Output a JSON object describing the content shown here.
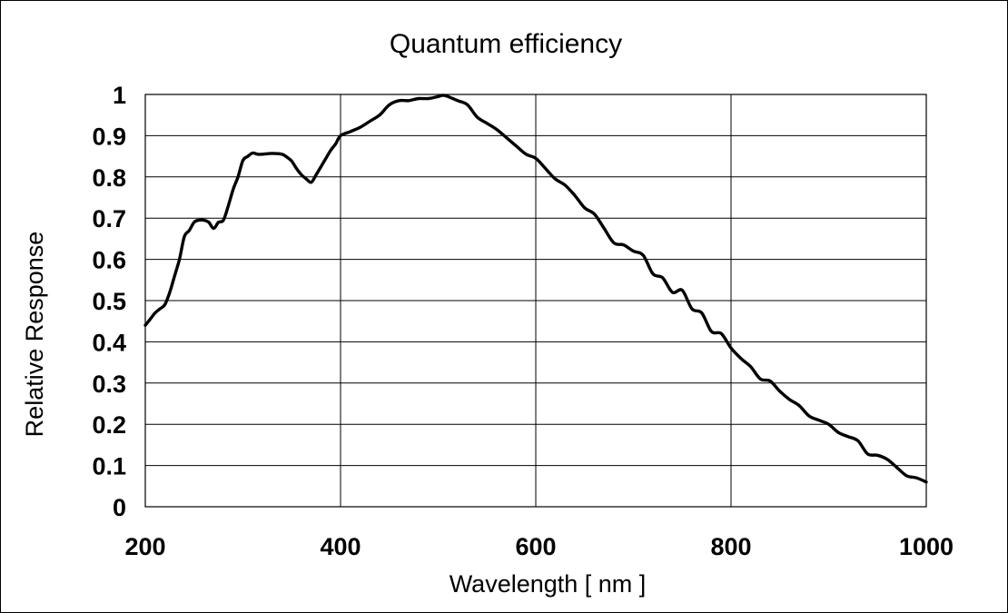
{
  "chart_data": {
    "type": "line",
    "title": "Quantum efficiency",
    "xlabel": "Wavelength [ nm ]",
    "ylabel": "Relative Response",
    "xlim": [
      200,
      1000
    ],
    "ylim": [
      0,
      1
    ],
    "x_ticks": [
      "200",
      "400",
      "600",
      "800",
      "1000"
    ],
    "y_ticks": [
      "0",
      "0.1",
      "0.2",
      "0.3",
      "0.4",
      "0.5",
      "0.6",
      "0.7",
      "0.8",
      "0.9",
      "1"
    ],
    "grid": true,
    "series": [
      {
        "color": "#000000",
        "x": [
          200,
          205,
          210,
          215,
          220,
          225,
          230,
          235,
          240,
          245,
          250,
          255,
          260,
          265,
          270,
          275,
          280,
          285,
          290,
          295,
          300,
          305,
          310,
          315,
          320,
          330,
          340,
          345,
          350,
          355,
          360,
          365,
          370,
          375,
          380,
          385,
          390,
          395,
          400,
          410,
          420,
          430,
          440,
          450,
          460,
          470,
          480,
          490,
          500,
          505,
          510,
          520,
          530,
          540,
          550,
          560,
          570,
          580,
          590,
          600,
          610,
          620,
          630,
          640,
          650,
          660,
          670,
          680,
          690,
          700,
          710,
          720,
          730,
          740,
          750,
          760,
          770,
          780,
          790,
          800,
          810,
          820,
          830,
          840,
          850,
          860,
          870,
          880,
          890,
          900,
          910,
          920,
          930,
          940,
          950,
          960,
          970,
          980,
          990,
          1000
        ],
        "y": [
          0.44,
          0.455,
          0.47,
          0.48,
          0.49,
          0.52,
          0.56,
          0.6,
          0.655,
          0.67,
          0.69,
          0.695,
          0.695,
          0.69,
          0.675,
          0.69,
          0.695,
          0.73,
          0.77,
          0.8,
          0.84,
          0.85,
          0.858,
          0.855,
          0.855,
          0.857,
          0.855,
          0.848,
          0.838,
          0.82,
          0.805,
          0.795,
          0.787,
          0.805,
          0.825,
          0.845,
          0.865,
          0.88,
          0.9,
          0.91,
          0.92,
          0.935,
          0.95,
          0.975,
          0.985,
          0.985,
          0.99,
          0.99,
          0.995,
          0.998,
          0.995,
          0.985,
          0.975,
          0.945,
          0.93,
          0.915,
          0.895,
          0.875,
          0.855,
          0.845,
          0.82,
          0.795,
          0.78,
          0.755,
          0.725,
          0.71,
          0.675,
          0.64,
          0.635,
          0.62,
          0.61,
          0.565,
          0.555,
          0.52,
          0.525,
          0.48,
          0.47,
          0.425,
          0.42,
          0.385,
          0.36,
          0.34,
          0.31,
          0.305,
          0.28,
          0.26,
          0.245,
          0.22,
          0.21,
          0.2,
          0.18,
          0.17,
          0.16,
          0.128,
          0.125,
          0.115,
          0.095,
          0.075,
          0.07,
          0.06
        ]
      }
    ]
  }
}
